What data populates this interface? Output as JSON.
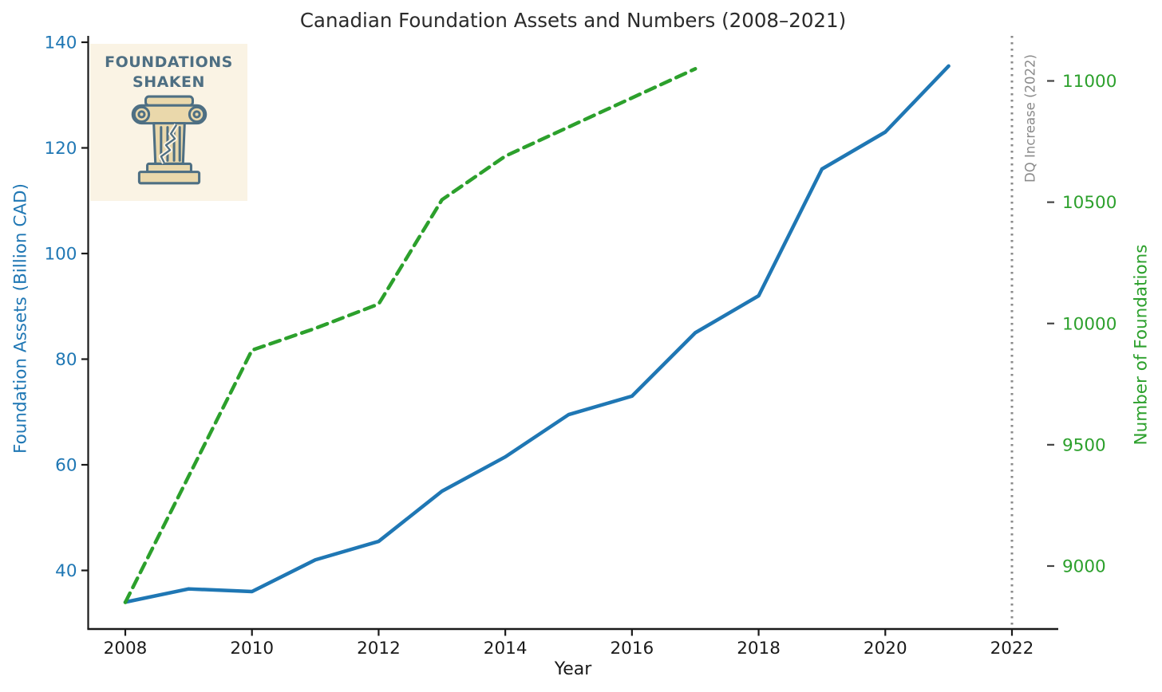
{
  "figure": {
    "title": "Canadian Foundation Assets and Numbers (2008–2021)",
    "x_label": "Year",
    "left_axis_label": "Foundation Assets (Billion CAD)",
    "right_axis_label": "Number of Foundations",
    "annotation_label": "DQ Increase (2022)"
  },
  "logo": {
    "line1": "FOUNDATIONS",
    "line2": "SHAKEN",
    "icon": "cracked-column-icon",
    "background": "#faf3e4",
    "ink": "#4e6f83",
    "fill": "#ead8ab"
  },
  "colors": {
    "assets_blue": "#1f77b4",
    "foundations_green": "#2ca02c",
    "annotation_gray": "#8a8a8a",
    "axis_black": "#1a1a1a"
  },
  "chart_data": {
    "type": "line",
    "title": "Canadian Foundation Assets and Numbers (2008–2021)",
    "xlabel": "Year",
    "ylabel_left": "Foundation Assets (Billion CAD)",
    "ylabel_right": "Number of Foundations",
    "grid": false,
    "legend": "none",
    "x_ticks": [
      2008,
      2010,
      2012,
      2014,
      2016,
      2018,
      2020,
      2022
    ],
    "left_ticks": [
      40,
      60,
      80,
      100,
      120,
      140
    ],
    "right_ticks": [
      9000,
      9500,
      10000,
      10500,
      11000
    ],
    "left_range": [
      29,
      141
    ],
    "right_range": [
      8740,
      11190
    ],
    "x_range": [
      2007.4,
      2022.7
    ],
    "series": [
      {
        "name": "Foundation Assets (Billion CAD)",
        "axis": "left",
        "color": "#1f77b4",
        "style": "solid",
        "x": [
          2008,
          2009,
          2010,
          2011,
          2012,
          2013,
          2014,
          2015,
          2016,
          2017,
          2018,
          2019,
          2020,
          2021
        ],
        "values": [
          34,
          36.5,
          36,
          42,
          45.5,
          55,
          61.5,
          69.5,
          73,
          85,
          92,
          116,
          123,
          135.5
        ]
      },
      {
        "name": "Number of Foundations",
        "axis": "right",
        "color": "#2ca02c",
        "style": "dashed",
        "x": [
          2008,
          2009,
          2010,
          2011,
          2012,
          2013,
          2014,
          2015,
          2016,
          2017
        ],
        "values": [
          8850,
          9370,
          9890,
          9980,
          10080,
          10510,
          10690,
          10810,
          10930,
          11050
        ]
      }
    ],
    "vline": {
      "x": 2022,
      "label": "DQ Increase (2022)",
      "style": "dotted",
      "color": "#8a8a8a"
    }
  }
}
